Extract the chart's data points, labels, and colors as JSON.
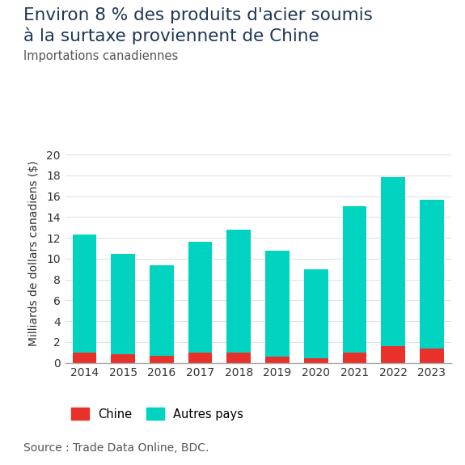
{
  "title_line1": "Environ 8 % des produits d'acier soumis",
  "title_line2": "à la surtaxe proviennent de Chine",
  "subtitle": "Importations canadiennes",
  "ylabel": "Milliards de dollars canadiens ($)",
  "source": "Source : Trade Data Online, BDC.",
  "years": [
    2014,
    2015,
    2016,
    2017,
    2018,
    2019,
    2020,
    2021,
    2022,
    2023
  ],
  "chine": [
    1.0,
    0.85,
    0.65,
    1.0,
    1.0,
    0.55,
    0.45,
    1.0,
    1.6,
    1.35
  ],
  "autres": [
    11.3,
    9.6,
    8.75,
    10.6,
    11.8,
    10.2,
    8.5,
    14.05,
    16.2,
    14.3
  ],
  "color_chine": "#e8312a",
  "color_autres": "#00d4c0",
  "ylim": [
    0,
    21
  ],
  "yticks": [
    0,
    2,
    4,
    6,
    8,
    10,
    12,
    14,
    16,
    18,
    20
  ],
  "legend_chine": "Chine",
  "legend_autres": "Autres pays",
  "title_fontsize": 15.5,
  "subtitle_fontsize": 10.5,
  "label_fontsize": 10,
  "tick_fontsize": 10,
  "source_fontsize": 10,
  "background_color": "#ffffff",
  "title_color": "#1d3557",
  "subtitle_color": "#555555",
  "axis_color": "#333333"
}
